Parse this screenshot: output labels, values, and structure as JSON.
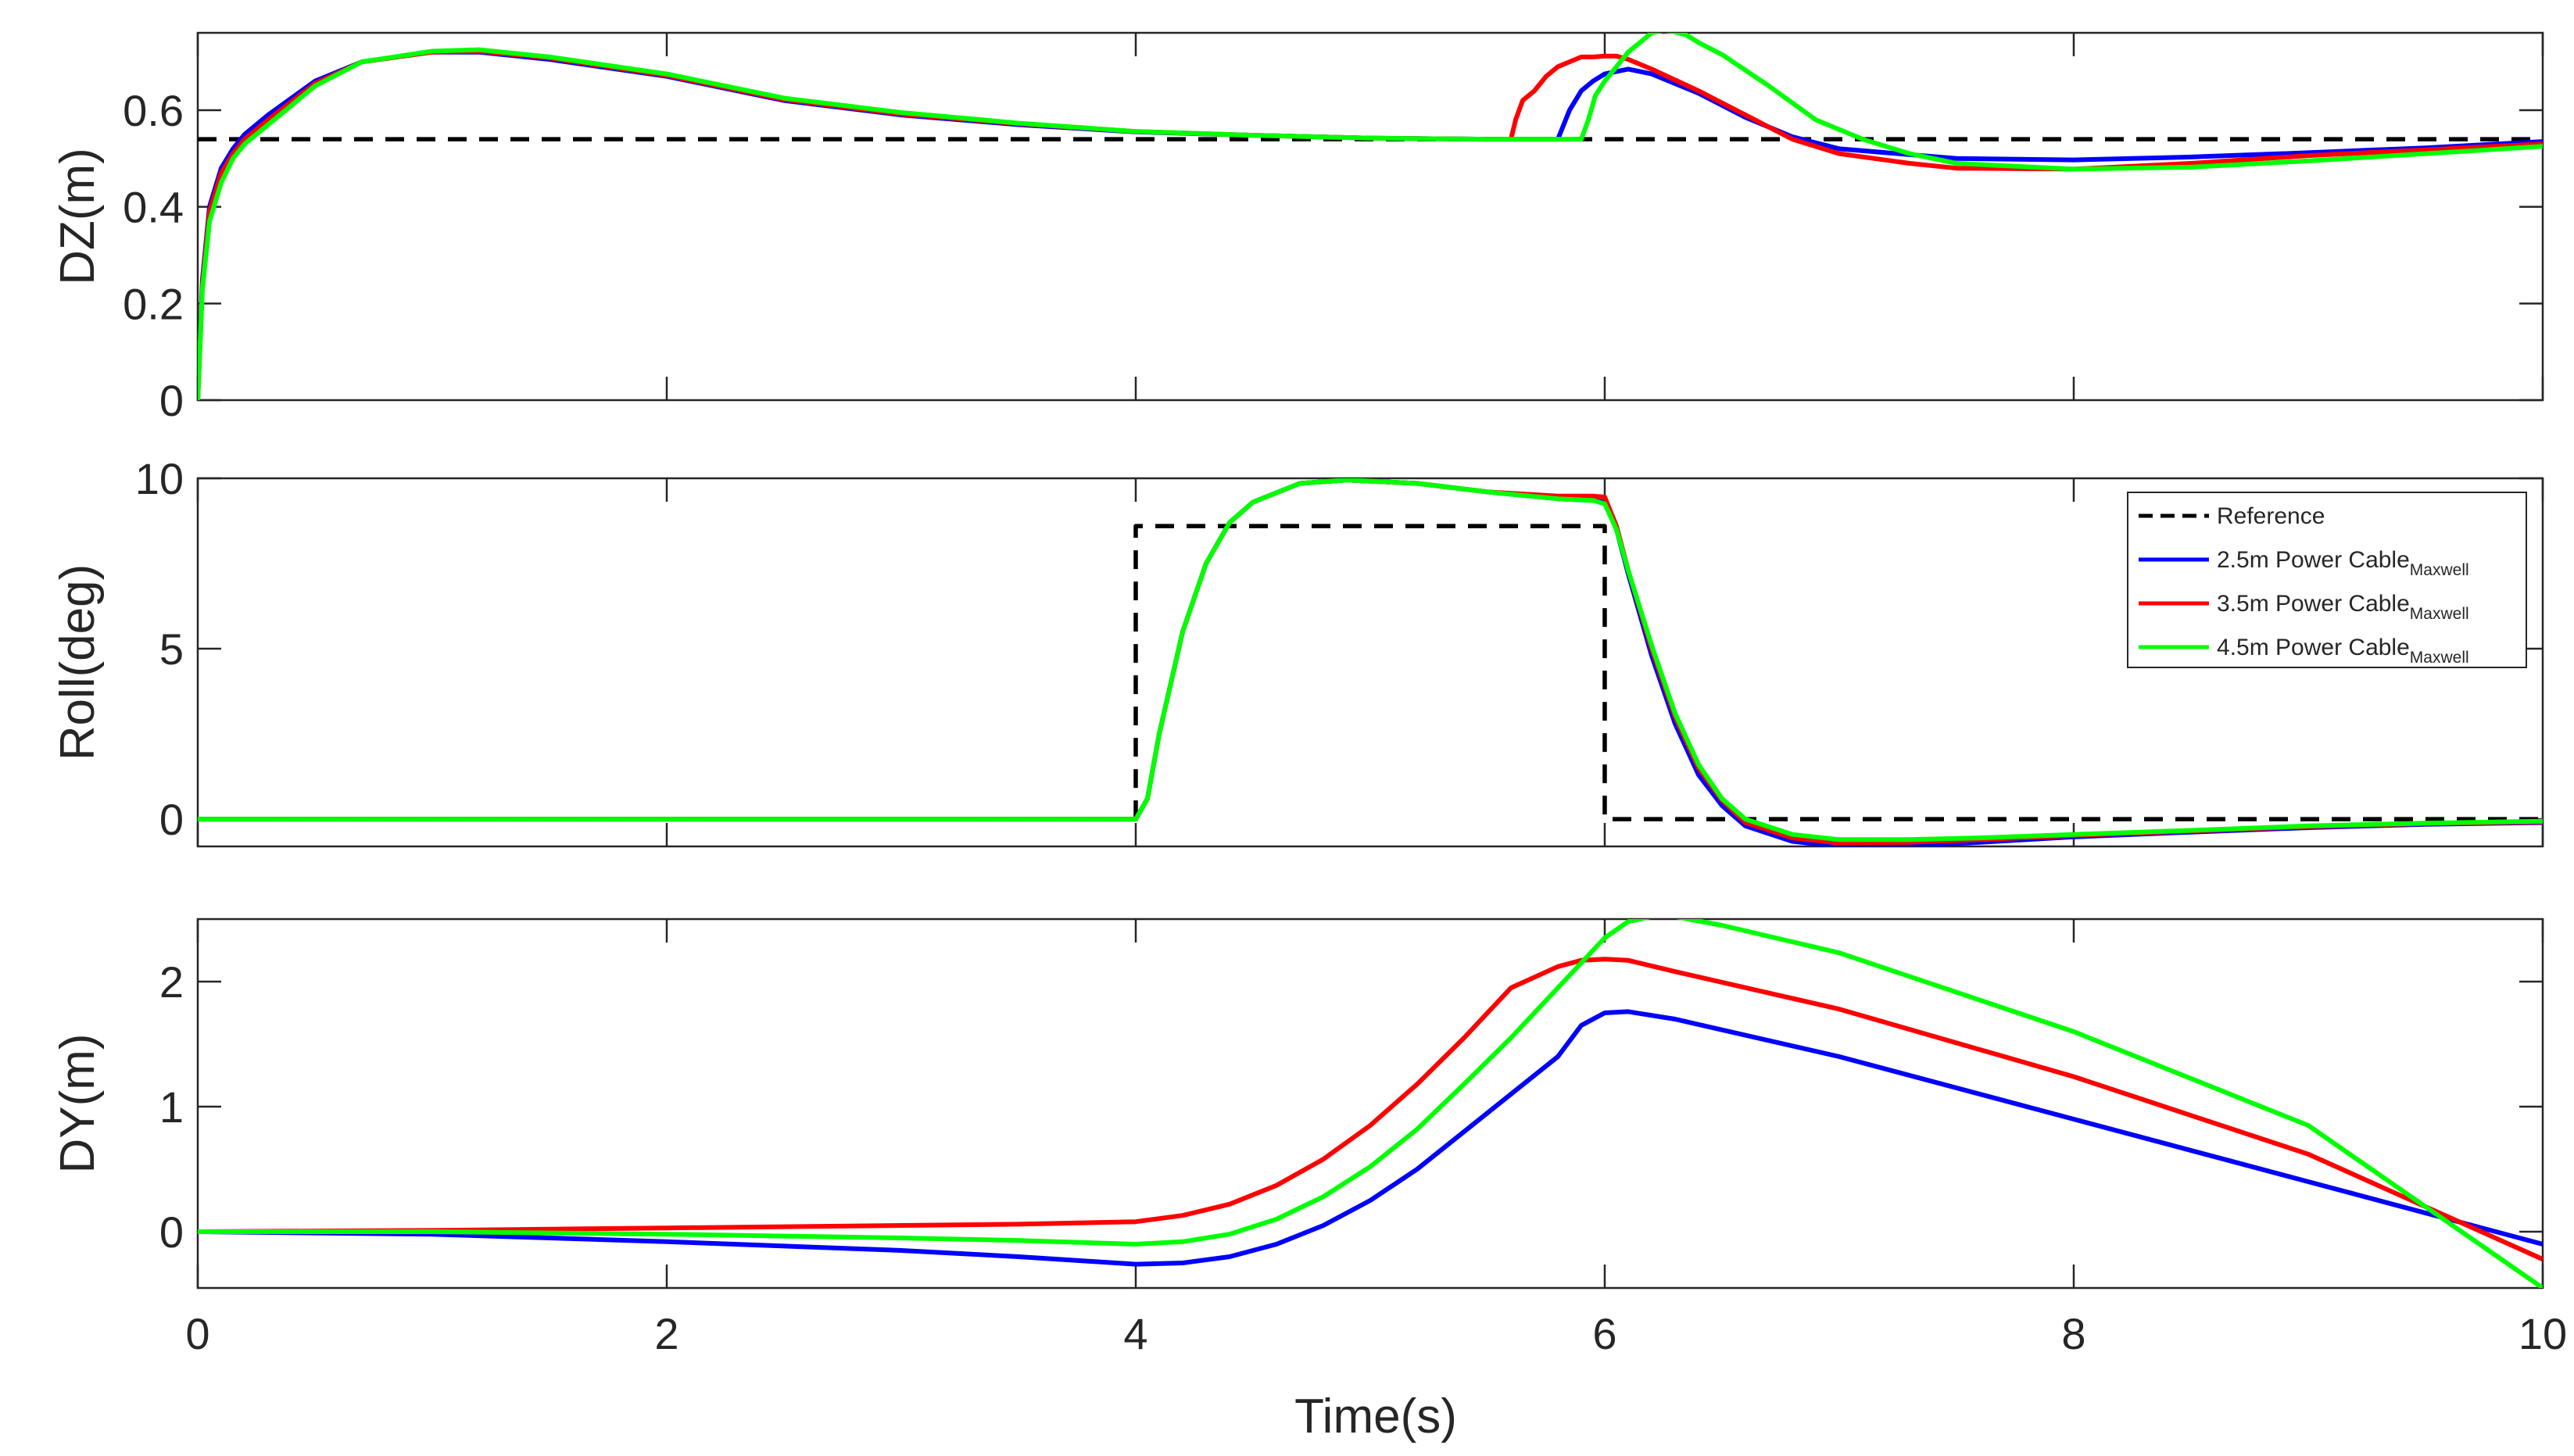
{
  "chart_data": [
    {
      "type": "line",
      "id": "dz",
      "xlabel": "",
      "ylabel": "DZ(m)",
      "xlim": [
        0,
        10
      ],
      "ylim": [
        0,
        0.76
      ],
      "xticks": [
        0,
        2,
        4,
        6,
        8,
        10
      ],
      "yticks": [
        0,
        0.2,
        0.4,
        0.6
      ],
      "ytick_labels": [
        "0",
        "0.2",
        "0.4",
        "0.6"
      ],
      "grid": false,
      "series": [
        {
          "name": "Reference",
          "color": "#000000",
          "dashed": true,
          "x": [
            0,
            10
          ],
          "y": [
            0.54,
            0.54
          ]
        },
        {
          "name": "2.5m Power Cable",
          "color": "#0000ff",
          "dashed": false,
          "x": [
            0,
            0.02,
            0.05,
            0.1,
            0.15,
            0.2,
            0.3,
            0.5,
            0.7,
            1.0,
            1.2,
            1.5,
            2,
            2.5,
            3,
            3.5,
            4,
            4.5,
            5,
            5.5,
            5.8,
            5.85,
            5.9,
            5.95,
            6.0,
            6.1,
            6.2,
            6.4,
            6.6,
            6.8,
            7.0,
            7.5,
            8.0,
            8.5,
            9.0,
            9.5,
            10
          ],
          "y": [
            0,
            0.25,
            0.4,
            0.48,
            0.52,
            0.55,
            0.59,
            0.66,
            0.7,
            0.72,
            0.72,
            0.705,
            0.67,
            0.62,
            0.59,
            0.57,
            0.555,
            0.548,
            0.542,
            0.54,
            0.54,
            0.6,
            0.64,
            0.66,
            0.675,
            0.685,
            0.675,
            0.635,
            0.585,
            0.545,
            0.52,
            0.5,
            0.497,
            0.503,
            0.512,
            0.522,
            0.535
          ]
        },
        {
          "name": "3.5m Power Cable",
          "color": "#ff0000",
          "dashed": false,
          "x": [
            0,
            0.02,
            0.05,
            0.1,
            0.15,
            0.2,
            0.3,
            0.5,
            0.7,
            1.0,
            1.2,
            1.5,
            2,
            2.5,
            3,
            3.5,
            4,
            4.5,
            5,
            5.5,
            5.6,
            5.62,
            5.65,
            5.7,
            5.75,
            5.8,
            5.85,
            5.9,
            5.95,
            6.0,
            6.05,
            6.1,
            6.2,
            6.4,
            6.6,
            6.8,
            7.0,
            7.3,
            7.5,
            8.0,
            8.5,
            9.0,
            9.5,
            10
          ],
          "y": [
            0,
            0.24,
            0.39,
            0.47,
            0.51,
            0.54,
            0.58,
            0.655,
            0.7,
            0.72,
            0.722,
            0.708,
            0.672,
            0.622,
            0.592,
            0.572,
            0.556,
            0.548,
            0.542,
            0.54,
            0.54,
            0.58,
            0.62,
            0.64,
            0.67,
            0.69,
            0.7,
            0.71,
            0.71,
            0.712,
            0.712,
            0.705,
            0.685,
            0.64,
            0.59,
            0.54,
            0.51,
            0.49,
            0.48,
            0.478,
            0.49,
            0.506,
            0.518,
            0.53
          ]
        },
        {
          "name": "4.5m Power Cable",
          "color": "#00ff00",
          "dashed": false,
          "x": [
            0,
            0.02,
            0.05,
            0.1,
            0.15,
            0.2,
            0.3,
            0.5,
            0.7,
            1.0,
            1.2,
            1.5,
            2,
            2.5,
            3,
            3.5,
            4,
            4.5,
            5,
            5.5,
            5.9,
            5.93,
            5.96,
            6.0,
            6.05,
            6.1,
            6.15,
            6.2,
            6.25,
            6.3,
            6.35,
            6.4,
            6.5,
            6.7,
            6.9,
            7.1,
            7.3,
            7.5,
            8.0,
            8.5,
            9.0,
            9.5,
            10
          ],
          "y": [
            0,
            0.23,
            0.37,
            0.45,
            0.5,
            0.53,
            0.57,
            0.65,
            0.7,
            0.722,
            0.725,
            0.71,
            0.675,
            0.625,
            0.595,
            0.573,
            0.556,
            0.548,
            0.542,
            0.54,
            0.54,
            0.58,
            0.63,
            0.66,
            0.69,
            0.72,
            0.74,
            0.76,
            0.765,
            0.762,
            0.755,
            0.74,
            0.715,
            0.65,
            0.58,
            0.54,
            0.51,
            0.49,
            0.478,
            0.482,
            0.495,
            0.51,
            0.525
          ]
        }
      ]
    },
    {
      "type": "line",
      "id": "roll",
      "xlabel": "",
      "ylabel": "Roll(deg)",
      "xlim": [
        0,
        10
      ],
      "ylim": [
        -0.8,
        10
      ],
      "xticks": [
        0,
        2,
        4,
        6,
        8,
        10
      ],
      "yticks": [
        0,
        5,
        10
      ],
      "ytick_labels": [
        "0",
        "5",
        "10"
      ],
      "grid": false,
      "legend": {
        "location": "top-right",
        "entries": [
          {
            "color": "#000000",
            "dashed": true,
            "label": "Reference",
            "subscript": ""
          },
          {
            "color": "#0000ff",
            "dashed": false,
            "label": "2.5m Power Cable",
            "subscript": "Maxwell"
          },
          {
            "color": "#ff0000",
            "dashed": false,
            "label": "3.5m Power Cable",
            "subscript": "Maxwell"
          },
          {
            "color": "#00ff00",
            "dashed": false,
            "label": "4.5m Power Cable",
            "subscript": "Maxwell"
          }
        ]
      },
      "series": [
        {
          "name": "Reference",
          "color": "#000000",
          "dashed": true,
          "x": [
            0,
            4,
            4,
            6,
            6,
            10
          ],
          "y": [
            0,
            0,
            8.6,
            8.6,
            0,
            0
          ]
        },
        {
          "name": "2.5m Power Cable",
          "color": "#0000ff",
          "dashed": false,
          "x": [
            0,
            4,
            4.05,
            4.1,
            4.2,
            4.3,
            4.4,
            4.5,
            4.7,
            4.9,
            5.2,
            5.5,
            5.8,
            5.95,
            6.0,
            6.05,
            6.1,
            6.2,
            6.3,
            6.4,
            6.5,
            6.6,
            6.8,
            7.0,
            7.3,
            7.6,
            8.0,
            8.5,
            9.0,
            9.5,
            10
          ],
          "y": [
            0,
            0,
            0.6,
            2.5,
            5.5,
            7.5,
            8.7,
            9.3,
            9.85,
            9.95,
            9.85,
            9.6,
            9.4,
            9.35,
            9.3,
            8.5,
            7.2,
            4.8,
            2.8,
            1.3,
            0.4,
            -0.2,
            -0.65,
            -0.8,
            -0.78,
            -0.68,
            -0.52,
            -0.38,
            -0.25,
            -0.15,
            -0.1
          ]
        },
        {
          "name": "3.5m Power Cable",
          "color": "#ff0000",
          "dashed": false,
          "x": [
            0,
            4,
            4.05,
            4.1,
            4.2,
            4.3,
            4.4,
            4.5,
            4.7,
            4.9,
            5.2,
            5.5,
            5.8,
            5.95,
            6.0,
            6.05,
            6.1,
            6.2,
            6.3,
            6.4,
            6.5,
            6.6,
            6.8,
            7.0,
            7.3,
            7.6,
            8.0,
            8.5,
            9.0,
            9.5,
            10
          ],
          "y": [
            0,
            0,
            0.6,
            2.5,
            5.5,
            7.5,
            8.7,
            9.3,
            9.85,
            9.95,
            9.85,
            9.6,
            9.48,
            9.48,
            9.45,
            8.6,
            7.3,
            5.0,
            3.0,
            1.5,
            0.55,
            -0.1,
            -0.55,
            -0.7,
            -0.68,
            -0.6,
            -0.48,
            -0.35,
            -0.22,
            -0.13,
            -0.08
          ]
        },
        {
          "name": "4.5m Power Cable",
          "color": "#00ff00",
          "dashed": false,
          "x": [
            0,
            4,
            4.05,
            4.1,
            4.2,
            4.3,
            4.4,
            4.5,
            4.7,
            4.9,
            5.2,
            5.5,
            5.8,
            5.95,
            6.0,
            6.05,
            6.1,
            6.2,
            6.3,
            6.4,
            6.5,
            6.6,
            6.8,
            7.0,
            7.3,
            7.6,
            8.0,
            8.5,
            9.0,
            9.5,
            10
          ],
          "y": [
            0,
            0,
            0.6,
            2.5,
            5.5,
            7.5,
            8.7,
            9.3,
            9.85,
            9.95,
            9.85,
            9.6,
            9.4,
            9.35,
            9.25,
            8.5,
            7.3,
            5.1,
            3.1,
            1.6,
            0.6,
            0.0,
            -0.45,
            -0.6,
            -0.6,
            -0.55,
            -0.45,
            -0.33,
            -0.2,
            -0.12,
            -0.06
          ]
        }
      ]
    },
    {
      "type": "line",
      "id": "dy",
      "xlabel": "Time(s)",
      "ylabel": "DY(m)",
      "xlim": [
        0,
        10
      ],
      "ylim": [
        -0.45,
        2.5
      ],
      "xticks": [
        0,
        2,
        4,
        6,
        8,
        10
      ],
      "xtick_labels": [
        "0",
        "2",
        "4",
        "6",
        "8",
        "10"
      ],
      "yticks": [
        0,
        1,
        2
      ],
      "ytick_labels": [
        "0",
        "1",
        "2"
      ],
      "grid": false,
      "series": [
        {
          "name": "2.5m Power Cable",
          "color": "#0000ff",
          "dashed": false,
          "x": [
            0,
            1,
            2,
            3,
            3.5,
            4,
            4.2,
            4.4,
            4.6,
            4.8,
            5.0,
            5.2,
            5.4,
            5.6,
            5.8,
            5.9,
            6.0,
            6.1,
            6.3,
            7.0,
            8.0,
            9.0,
            10
          ],
          "y": [
            0,
            -0.02,
            -0.08,
            -0.15,
            -0.2,
            -0.26,
            -0.25,
            -0.2,
            -0.1,
            0.05,
            0.25,
            0.5,
            0.8,
            1.1,
            1.4,
            1.65,
            1.75,
            1.76,
            1.7,
            1.4,
            0.9,
            0.4,
            -0.1
          ]
        },
        {
          "name": "3.5m Power Cable",
          "color": "#ff0000",
          "dashed": false,
          "x": [
            0,
            1,
            2,
            3,
            3.5,
            4,
            4.2,
            4.4,
            4.6,
            4.8,
            5.0,
            5.2,
            5.4,
            5.6,
            5.8,
            5.9,
            6.0,
            6.1,
            6.3,
            7.0,
            8.0,
            9.0,
            10
          ],
          "y": [
            0,
            0.01,
            0.03,
            0.05,
            0.06,
            0.08,
            0.13,
            0.22,
            0.37,
            0.58,
            0.85,
            1.18,
            1.55,
            1.95,
            2.12,
            2.17,
            2.18,
            2.17,
            2.08,
            1.78,
            1.24,
            0.62,
            -0.22
          ]
        },
        {
          "name": "4.5m Power Cable",
          "color": "#00ff00",
          "dashed": false,
          "x": [
            0,
            1,
            2,
            3,
            3.5,
            4,
            4.2,
            4.4,
            4.6,
            4.8,
            5.0,
            5.2,
            5.4,
            5.6,
            5.8,
            6.0,
            6.1,
            6.2,
            6.3,
            6.5,
            7.0,
            8.0,
            9.0,
            10
          ],
          "y": [
            0,
            0.0,
            -0.02,
            -0.05,
            -0.07,
            -0.1,
            -0.08,
            -0.02,
            0.1,
            0.28,
            0.52,
            0.82,
            1.18,
            1.55,
            1.95,
            2.35,
            2.48,
            2.52,
            2.52,
            2.45,
            2.23,
            1.6,
            0.85,
            -0.45
          ]
        }
      ]
    }
  ]
}
